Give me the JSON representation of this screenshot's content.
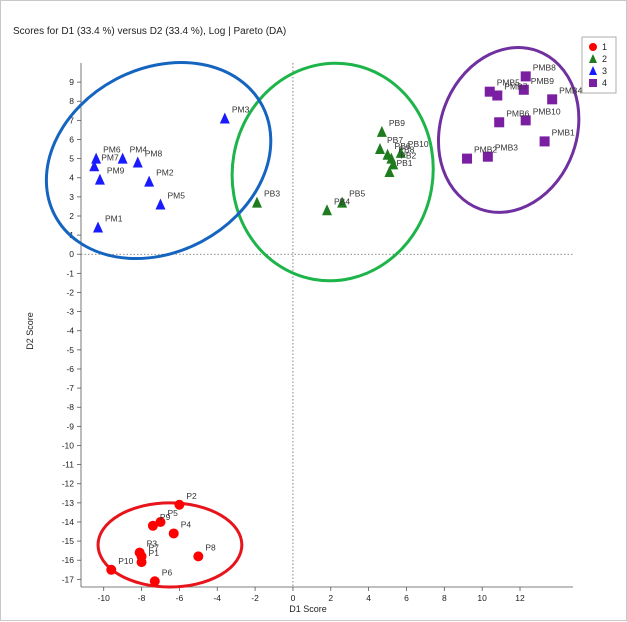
{
  "chart_data": {
    "type": "scatter",
    "title": "Scores for D1 (33.4 %) versus D2 (33.4 %), Log | Pareto (DA)",
    "xlabel": "D1 Score",
    "ylabel": "D2 Score",
    "xlim": [
      -11.2,
      14.8
    ],
    "ylim": [
      -17.4,
      10.0
    ],
    "x_ticks": [
      -10,
      -8,
      -6,
      -4,
      -2,
      0,
      2,
      4,
      6,
      8,
      10,
      12
    ],
    "y_ticks": [
      -17,
      -16,
      -15,
      -14,
      -13,
      -12,
      -11,
      -10,
      -9,
      -8,
      -7,
      -6,
      -5,
      -4,
      -3,
      -2,
      -1,
      0,
      1,
      2,
      3,
      4,
      5,
      6,
      7,
      8,
      9
    ],
    "grid": false,
    "legend_position": "top-right",
    "series": [
      {
        "name": "1",
        "marker": "circle",
        "color": "#ff0000",
        "ellipse_color": "#e8141c",
        "ellipse": {
          "cx": -6.5,
          "cy": -15.2,
          "rx": 3.8,
          "ry": 2.2
        },
        "points": [
          {
            "label": "P1",
            "x": -8.0,
            "y": -16.1
          },
          {
            "label": "P2",
            "x": -6.0,
            "y": -13.1
          },
          {
            "label": "P3",
            "x": -8.1,
            "y": -15.6
          },
          {
            "label": "P4",
            "x": -6.3,
            "y": -14.6
          },
          {
            "label": "P5",
            "x": -7.0,
            "y": -14.0
          },
          {
            "label": "P6",
            "x": -7.3,
            "y": -17.1
          },
          {
            "label": "P7",
            "x": -8.0,
            "y": -15.8
          },
          {
            "label": "P8",
            "x": -5.0,
            "y": -15.8
          },
          {
            "label": "P9",
            "x": -7.4,
            "y": -14.2
          },
          {
            "label": "P10",
            "x": -9.6,
            "y": -16.5
          }
        ]
      },
      {
        "name": "2",
        "marker": "triangle",
        "color": "#1e7b1e",
        "ellipse_color": "#1db44a",
        "ellipse": {
          "cx": 2.1,
          "cy": 4.3,
          "rx": 5.3,
          "ry": 5.7,
          "rotate": 10
        },
        "points": [
          {
            "label": "PB1",
            "x": 5.1,
            "y": 4.3
          },
          {
            "label": "PB2",
            "x": 5.3,
            "y": 4.7
          },
          {
            "label": "PB3",
            "x": -1.9,
            "y": 2.7
          },
          {
            "label": "PB4",
            "x": 1.8,
            "y": 2.3
          },
          {
            "label": "PB5",
            "x": 2.6,
            "y": 2.7
          },
          {
            "label": "PB6",
            "x": 5.0,
            "y": 5.2
          },
          {
            "label": "PB7",
            "x": 4.6,
            "y": 5.5
          },
          {
            "label": "PB8",
            "x": 5.2,
            "y": 5.0
          },
          {
            "label": "PB9",
            "x": 4.7,
            "y": 6.4
          },
          {
            "label": "PB10",
            "x": 5.7,
            "y": 5.3
          }
        ]
      },
      {
        "name": "3",
        "marker": "triangle",
        "color": "#1a1aff",
        "ellipse_color": "#1565c0",
        "ellipse": {
          "cx": -7.1,
          "cy": 4.9,
          "rx": 6.2,
          "ry": 4.8,
          "rotate": -28
        },
        "points": [
          {
            "label": "PM1",
            "x": -10.3,
            "y": 1.4
          },
          {
            "label": "PM2",
            "x": -7.6,
            "y": 3.8
          },
          {
            "label": "PM3",
            "x": -3.6,
            "y": 7.1
          },
          {
            "label": "PM4",
            "x": -9.0,
            "y": 5.0
          },
          {
            "label": "PM5",
            "x": -7.0,
            "y": 2.6
          },
          {
            "label": "PM6",
            "x": -10.4,
            "y": 5.0
          },
          {
            "label": "PM7",
            "x": -10.5,
            "y": 4.6
          },
          {
            "label": "PM8",
            "x": -8.2,
            "y": 4.8
          },
          {
            "label": "PM9",
            "x": -10.2,
            "y": 3.9
          }
        ]
      },
      {
        "name": "4",
        "marker": "square",
        "color": "#7b1fa2",
        "ellipse_color": "#7030a0",
        "ellipse": {
          "cx": 11.4,
          "cy": 6.5,
          "rx": 3.6,
          "ry": 4.4,
          "rotate": 20
        },
        "points": [
          {
            "label": "PMB1",
            "x": 13.3,
            "y": 5.9
          },
          {
            "label": "PMB2",
            "x": 9.2,
            "y": 5.0
          },
          {
            "label": "PMB3",
            "x": 10.3,
            "y": 5.1
          },
          {
            "label": "PMB4",
            "x": 13.7,
            "y": 8.1
          },
          {
            "label": "PMB5",
            "x": 10.4,
            "y": 8.5
          },
          {
            "label": "PMB6",
            "x": 10.9,
            "y": 6.9
          },
          {
            "label": "PMB7",
            "x": 10.8,
            "y": 8.3
          },
          {
            "label": "PMB8",
            "x": 12.3,
            "y": 9.3
          },
          {
            "label": "PMB9",
            "x": 12.2,
            "y": 8.6
          },
          {
            "label": "PMB10",
            "x": 12.3,
            "y": 7.0
          }
        ]
      }
    ]
  }
}
